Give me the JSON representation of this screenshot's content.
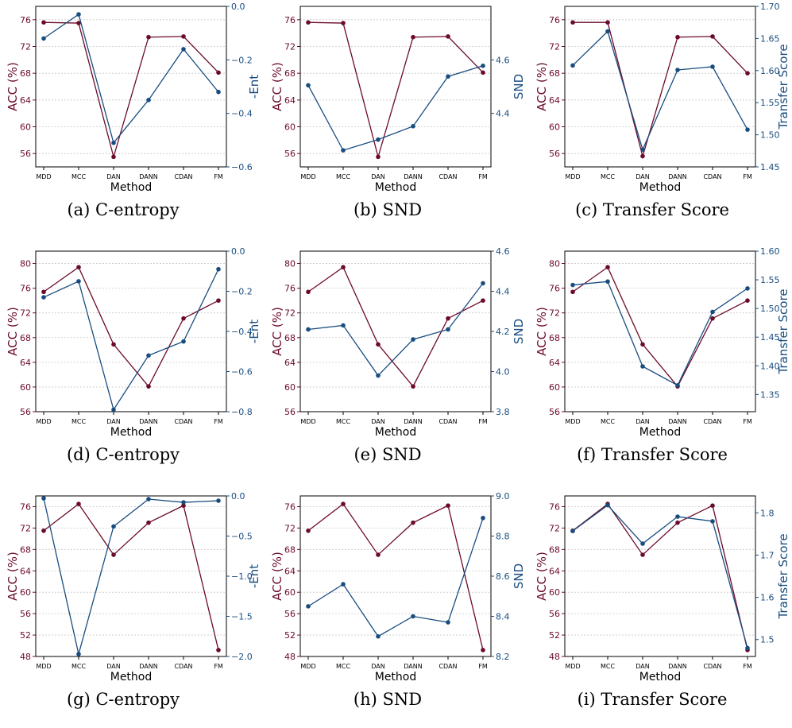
{
  "colors": {
    "acc": "#6b0a2a",
    "metric": "#194d80",
    "grid": "#c8c8c8",
    "axis": "#000000"
  },
  "chart_data": [
    {
      "type": "line",
      "caption": "(a) C-entropy",
      "categories": [
        "MDD",
        "MCC",
        "DAN",
        "DANN",
        "CDAN",
        "FM"
      ],
      "xlabel": "Method",
      "ylabel_left": "ACC (%)",
      "ylabel_right": "-Ent",
      "ylim_left": [
        54,
        78
      ],
      "yticks_left": [
        56,
        60,
        64,
        68,
        72,
        76
      ],
      "ylim_right": [
        -0.6,
        0.0
      ],
      "yticks_right": [
        -0.6,
        -0.4,
        -0.2,
        0.0
      ],
      "grid": true,
      "series": [
        {
          "axis": "left",
          "values": [
            75.6,
            75.5,
            55.5,
            73.4,
            73.5,
            68.1
          ]
        },
        {
          "axis": "right",
          "values": [
            -0.12,
            -0.03,
            -0.51,
            -0.35,
            -0.16,
            -0.32
          ]
        }
      ]
    },
    {
      "type": "line",
      "caption": "(b) SND",
      "categories": [
        "MDD",
        "MCC",
        "DAN",
        "DANN",
        "CDAN",
        "FM"
      ],
      "xlabel": "Method",
      "ylabel_left": "ACC (%)",
      "ylabel_right": "SND",
      "ylim_left": [
        54,
        78
      ],
      "yticks_left": [
        56,
        60,
        64,
        68,
        72,
        76
      ],
      "ylim_right": [
        4.2,
        4.8
      ],
      "yticks_right": [
        4.4,
        4.6
      ],
      "grid": true,
      "series": [
        {
          "axis": "left",
          "values": [
            75.6,
            75.5,
            55.5,
            73.4,
            73.5,
            68.1
          ]
        },
        {
          "axis": "right",
          "values": [
            4.505,
            4.262,
            4.302,
            4.352,
            4.538,
            4.578
          ]
        }
      ]
    },
    {
      "type": "line",
      "caption": "(c) Transfer Score",
      "categories": [
        "MDD",
        "MCC",
        "DAN",
        "DANN",
        "CDAN",
        "FM"
      ],
      "xlabel": "Method",
      "ylabel_left": "ACC (%)",
      "ylabel_right": "Transfer Score",
      "ylim_left": [
        54,
        78
      ],
      "yticks_left": [
        56,
        60,
        64,
        68,
        72,
        76
      ],
      "ylim_right": [
        1.45,
        1.7
      ],
      "yticks_right": [
        1.45,
        1.5,
        1.55,
        1.6,
        1.65,
        1.7
      ],
      "grid": true,
      "series": [
        {
          "axis": "left",
          "values": [
            75.6,
            75.6,
            55.6,
            73.4,
            73.5,
            68.0
          ]
        },
        {
          "axis": "right",
          "values": [
            1.608,
            1.661,
            1.477,
            1.601,
            1.606,
            1.508
          ]
        }
      ]
    },
    {
      "type": "line",
      "caption": "(d) C-entropy",
      "categories": [
        "MDD",
        "MCC",
        "DAN",
        "DANN",
        "CDAN",
        "FM"
      ],
      "xlabel": "Method",
      "ylabel_left": "ACC (%)",
      "ylabel_right": "-Ent",
      "ylim_left": [
        56,
        82
      ],
      "yticks_left": [
        56,
        60,
        64,
        68,
        72,
        76,
        80
      ],
      "ylim_right": [
        -0.8,
        0.0
      ],
      "yticks_right": [
        -0.8,
        -0.6,
        -0.4,
        -0.2,
        0.0
      ],
      "grid": true,
      "series": [
        {
          "axis": "left",
          "values": [
            75.4,
            79.4,
            66.9,
            60.1,
            71.1,
            74.0
          ]
        },
        {
          "axis": "right",
          "values": [
            -0.23,
            -0.15,
            -0.79,
            -0.52,
            -0.45,
            -0.09
          ]
        }
      ]
    },
    {
      "type": "line",
      "caption": "(e) SND",
      "categories": [
        "MDD",
        "MCC",
        "DAN",
        "DANN",
        "CDAN",
        "FM"
      ],
      "xlabel": "Method",
      "ylabel_left": "ACC (%)",
      "ylabel_right": "SND",
      "ylim_left": [
        56,
        82
      ],
      "yticks_left": [
        56,
        60,
        64,
        68,
        72,
        76,
        80
      ],
      "ylim_right": [
        3.8,
        4.6
      ],
      "yticks_right": [
        3.8,
        4.0,
        4.2,
        4.4,
        4.6
      ],
      "grid": true,
      "series": [
        {
          "axis": "left",
          "values": [
            75.4,
            79.4,
            66.9,
            60.1,
            71.1,
            74.0
          ]
        },
        {
          "axis": "right",
          "values": [
            4.21,
            4.23,
            3.98,
            4.16,
            4.21,
            4.44
          ]
        }
      ]
    },
    {
      "type": "line",
      "caption": "(f) Transfer Score",
      "categories": [
        "MDD",
        "MCC",
        "DAN",
        "DANN",
        "CDAN",
        "FM"
      ],
      "xlabel": "Method",
      "ylabel_left": "ACC (%)",
      "ylabel_right": "Transfer Score",
      "ylim_left": [
        56,
        82
      ],
      "yticks_left": [
        56,
        60,
        64,
        68,
        72,
        76,
        80
      ],
      "ylim_right": [
        1.32,
        1.6
      ],
      "yticks_right": [
        1.35,
        1.4,
        1.45,
        1.5,
        1.55,
        1.6
      ],
      "grid": true,
      "series": [
        {
          "axis": "left",
          "values": [
            75.4,
            79.4,
            66.9,
            60.1,
            71.1,
            74.0
          ]
        },
        {
          "axis": "right",
          "values": [
            1.541,
            1.547,
            1.399,
            1.366,
            1.494,
            1.535
          ]
        }
      ]
    },
    {
      "type": "line",
      "caption": "(g) C-entropy",
      "categories": [
        "MDD",
        "MCC",
        "DAN",
        "DANN",
        "CDAN",
        "FM"
      ],
      "xlabel": "Method",
      "ylabel_left": "ACC (%)",
      "ylabel_right": "-Ent",
      "ylim_left": [
        48,
        78
      ],
      "yticks_left": [
        48,
        52,
        56,
        60,
        64,
        68,
        72,
        76
      ],
      "ylim_right": [
        -2.0,
        0.0
      ],
      "yticks_right": [
        -2.0,
        -1.5,
        -1.0,
        -0.5,
        0.0
      ],
      "grid": true,
      "series": [
        {
          "axis": "left",
          "values": [
            71.5,
            76.5,
            67.0,
            73.0,
            76.2,
            49.2
          ]
        },
        {
          "axis": "right",
          "values": [
            -0.03,
            -1.97,
            -0.38,
            -0.04,
            -0.08,
            -0.06
          ]
        }
      ]
    },
    {
      "type": "line",
      "caption": "(h) SND",
      "categories": [
        "MDD",
        "MCC",
        "DAN",
        "DANN",
        "CDAN",
        "FM"
      ],
      "xlabel": "Method",
      "ylabel_left": "ACC (%)",
      "ylabel_right": "SND",
      "ylim_left": [
        48,
        78
      ],
      "yticks_left": [
        48,
        52,
        56,
        60,
        64,
        68,
        72,
        76
      ],
      "ylim_right": [
        8.2,
        9.0
      ],
      "yticks_right": [
        8.2,
        8.4,
        8.6,
        8.8,
        9.0
      ],
      "grid": true,
      "series": [
        {
          "axis": "left",
          "values": [
            71.5,
            76.5,
            67.0,
            73.0,
            76.2,
            49.2
          ]
        },
        {
          "axis": "right",
          "values": [
            8.45,
            8.56,
            8.3,
            8.4,
            8.37,
            8.89
          ]
        }
      ]
    },
    {
      "type": "line",
      "caption": "(i) Transfer Score",
      "categories": [
        "MDD",
        "MCC",
        "DAN",
        "DANN",
        "CDAN",
        "FM"
      ],
      "xlabel": "Method",
      "ylabel_left": "ACC (%)",
      "ylabel_right": "Transfer Score",
      "ylim_left": [
        48,
        78
      ],
      "yticks_left": [
        48,
        52,
        56,
        60,
        64,
        68,
        72,
        76
      ],
      "ylim_right": [
        1.46,
        1.84
      ],
      "yticks_right": [
        1.5,
        1.6,
        1.7,
        1.8
      ],
      "grid": true,
      "series": [
        {
          "axis": "left",
          "values": [
            71.5,
            76.5,
            67.0,
            73.0,
            76.2,
            49.2
          ]
        },
        {
          "axis": "right",
          "values": [
            1.757,
            1.818,
            1.727,
            1.791,
            1.78,
            1.48
          ]
        }
      ]
    }
  ]
}
